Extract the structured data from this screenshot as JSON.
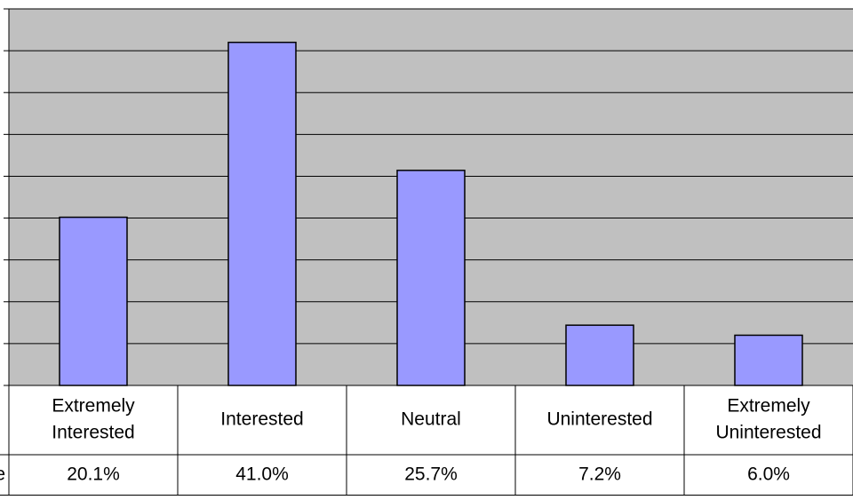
{
  "chart_data": {
    "type": "bar",
    "categories": [
      [
        "Extremely",
        "Interested"
      ],
      [
        "Interested"
      ],
      [
        "Neutral"
      ],
      [
        "Uninterested"
      ],
      [
        "Extremely",
        "Uninterested"
      ]
    ],
    "values": [
      20.1,
      41.0,
      25.7,
      7.2,
      6.0
    ],
    "table_row_label_fragment": "e",
    "table_values": [
      "20.1%",
      "41.0%",
      "25.7%",
      "7.2%",
      "6.0%"
    ],
    "ylim": [
      0,
      45
    ],
    "grid": true,
    "colors": {
      "plot_background": "#c0c0c0",
      "bar_fill": "#9999ff",
      "bar_stroke": "#000000",
      "grid": "#000000",
      "table_border": "#000000"
    }
  }
}
